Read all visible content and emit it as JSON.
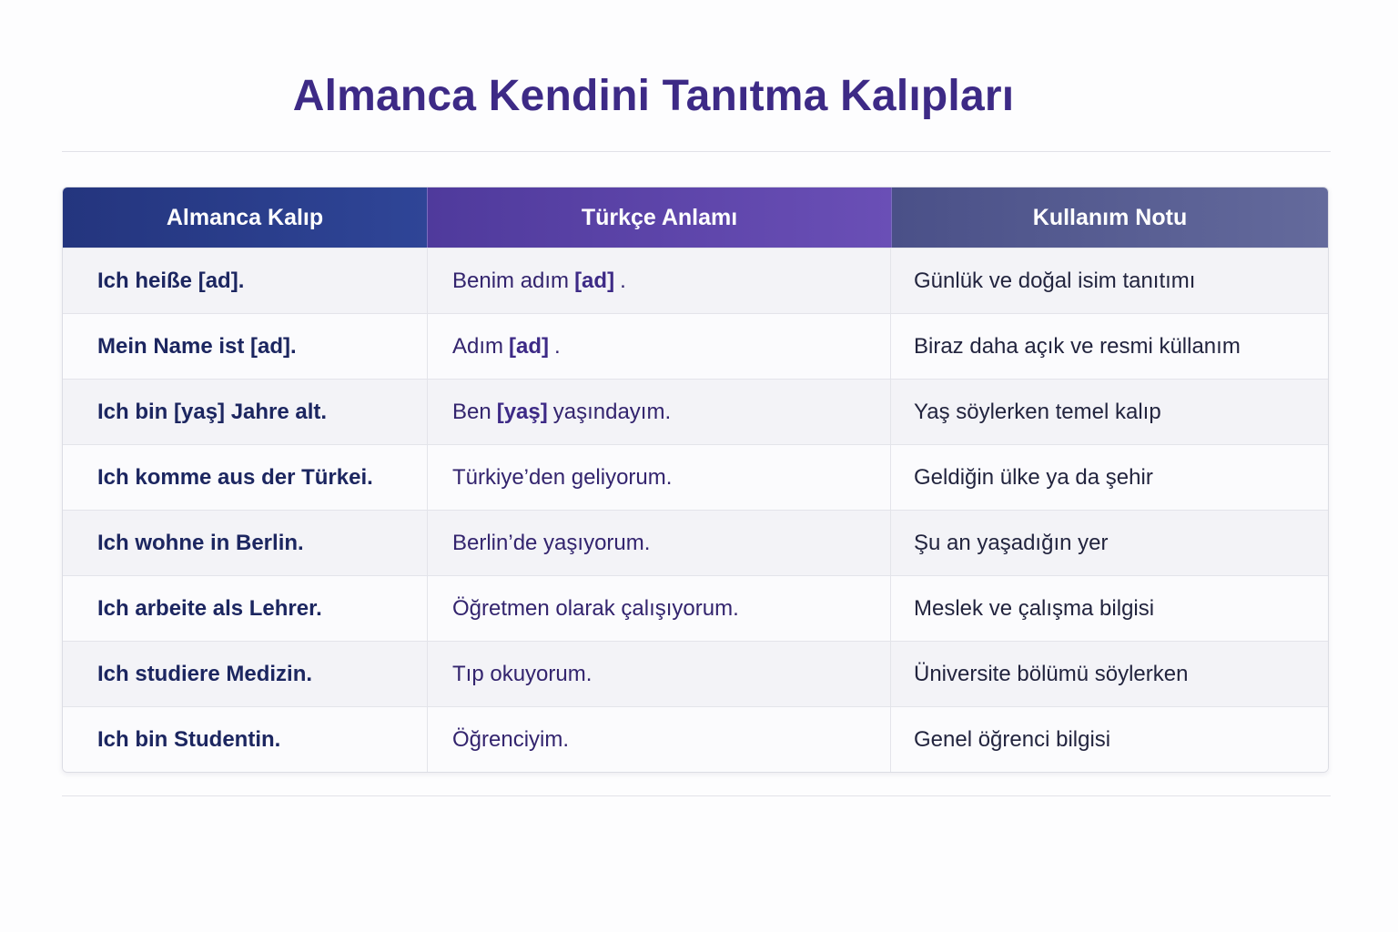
{
  "title": "Almanca Kendini Tanıtma Kalıpları",
  "colors": {
    "title": "#3d2a86",
    "header_col1": "#2a3d8a",
    "header_col2": "#5a42a8",
    "header_col3": "#565c92"
  },
  "table": {
    "headers": [
      "Almanca Kalıp",
      "Türkçe Anlamı",
      "Kullanım Notu"
    ],
    "rows": [
      {
        "de": "Ich heiße [ad].",
        "tr": {
          "pre": "Benim adım",
          "bold": "[ad]",
          "post": "."
        },
        "note": "Günlük ve doğal isim tanıtımı"
      },
      {
        "de": "Mein Name ist [ad].",
        "tr": {
          "pre": "Adım",
          "bold": "[ad]",
          "post": "."
        },
        "note": "Biraz daha açık ve resmi küllanım"
      },
      {
        "de": "Ich bin [yaş] Jahre alt.",
        "tr": {
          "pre": "Ben",
          "bold": "[yaş]",
          "post": "yaşındayım."
        },
        "note": "Yaş söylerken temel kalıp"
      },
      {
        "de": "Ich komme aus der Türkei.",
        "tr": {
          "pre": "Türkiye’den geliyorum."
        },
        "note": "Geldiğin ülke ya da şehir"
      },
      {
        "de": "Ich wohne in Berlin.",
        "tr": {
          "pre": "Berlin’de yaşıyorum."
        },
        "note": "Şu an yaşadığın yer"
      },
      {
        "de": "Ich arbeite als Lehrer.",
        "tr": {
          "pre": "Öğretmen olarak çalışıyorum."
        },
        "note": "Meslek ve çalışma bilgisi"
      },
      {
        "de": "Ich studiere Medizin.",
        "tr": {
          "pre": "Tıp okuyorum."
        },
        "note": "Üniversite bölümü söylerken"
      },
      {
        "de": "Ich bin Studentin.",
        "tr": {
          "pre": "Öğrenciyim."
        },
        "note": "Genel öğrenci bilgisi"
      }
    ]
  }
}
